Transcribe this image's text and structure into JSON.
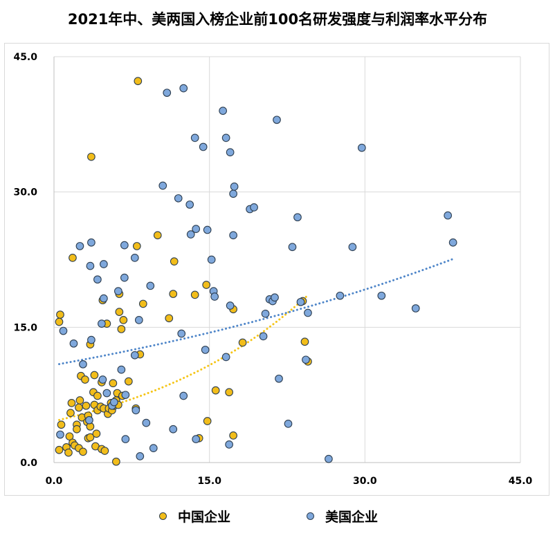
{
  "chart_data": {
    "type": "scatter",
    "title": "2021年中、美两国入榜企业前100名研发强度与利润率水平分布",
    "xlabel": "",
    "ylabel": "",
    "xlim": [
      0,
      45
    ],
    "ylim": [
      0,
      45
    ],
    "x_ticks": [
      "0.0",
      "15.0",
      "30.0",
      "45.0"
    ],
    "y_ticks": [
      "0.0",
      "15.0",
      "30.0",
      "45.0"
    ],
    "grid": "on",
    "legend_position": "bottom",
    "series": [
      {
        "name": "中国企业",
        "color": "#f2bd1a",
        "trendline": "exponential",
        "trend_range": [
          0.5,
          24.5
        ],
        "points": [
          [
            0.6,
            16.4
          ],
          [
            0.5,
            15.6
          ],
          [
            0.7,
            4.2
          ],
          [
            0.5,
            1.4
          ],
          [
            1.2,
            1.7
          ],
          [
            1.4,
            1.1
          ],
          [
            1.5,
            2.9
          ],
          [
            1.6,
            5.5
          ],
          [
            1.7,
            6.6
          ],
          [
            1.8,
            22.7
          ],
          [
            1.8,
            2.2
          ],
          [
            2.0,
            1.9
          ],
          [
            2.2,
            4.2
          ],
          [
            2.2,
            3.7
          ],
          [
            2.4,
            6.1
          ],
          [
            2.4,
            1.6
          ],
          [
            2.5,
            6.9
          ],
          [
            2.6,
            9.6
          ],
          [
            2.7,
            5.0
          ],
          [
            2.8,
            1.2
          ],
          [
            3.0,
            9.2
          ],
          [
            3.1,
            6.3
          ],
          [
            3.2,
            4.5
          ],
          [
            3.3,
            2.7
          ],
          [
            3.3,
            5.2
          ],
          [
            3.5,
            4.0
          ],
          [
            3.5,
            2.8
          ],
          [
            3.5,
            13.1
          ],
          [
            3.6,
            33.9
          ],
          [
            3.8,
            7.8
          ],
          [
            3.9,
            9.7
          ],
          [
            3.9,
            6.4
          ],
          [
            4.0,
            1.8
          ],
          [
            4.1,
            3.2
          ],
          [
            4.2,
            5.8
          ],
          [
            4.2,
            7.4
          ],
          [
            4.5,
            6.2
          ],
          [
            4.6,
            1.5
          ],
          [
            4.6,
            8.9
          ],
          [
            4.7,
            18.0
          ],
          [
            4.8,
            6.0
          ],
          [
            4.9,
            1.3
          ],
          [
            5.1,
            15.4
          ],
          [
            5.2,
            5.4
          ],
          [
            5.3,
            6.0
          ],
          [
            5.5,
            6.6
          ],
          [
            5.6,
            5.8
          ],
          [
            5.7,
            8.8
          ],
          [
            5.8,
            6.3
          ],
          [
            6.0,
            6.9
          ],
          [
            6.0,
            0.1
          ],
          [
            6.1,
            7.7
          ],
          [
            6.2,
            6.4
          ],
          [
            6.3,
            18.7
          ],
          [
            6.3,
            16.7
          ],
          [
            6.5,
            14.8
          ],
          [
            6.6,
            7.4
          ],
          [
            6.7,
            15.8
          ],
          [
            7.2,
            9.0
          ],
          [
            7.9,
            6.0
          ],
          [
            8.0,
            24.0
          ],
          [
            8.1,
            42.3
          ],
          [
            8.3,
            12.0
          ],
          [
            8.6,
            17.6
          ],
          [
            10.0,
            25.2
          ],
          [
            11.6,
            22.3
          ],
          [
            11.5,
            18.7
          ],
          [
            11.1,
            16.0
          ],
          [
            13.6,
            18.6
          ],
          [
            14.0,
            2.7
          ],
          [
            14.7,
            19.7
          ],
          [
            14.8,
            4.6
          ],
          [
            15.6,
            8.0
          ],
          [
            16.9,
            7.8
          ],
          [
            17.3,
            17.0
          ],
          [
            17.3,
            3.0
          ],
          [
            18.2,
            13.3
          ],
          [
            24.0,
            17.9
          ],
          [
            24.2,
            13.4
          ],
          [
            24.5,
            11.2
          ]
        ]
      },
      {
        "name": "美国企业",
        "color": "#7fa8dc",
        "trendline": "exponential",
        "trend_range": [
          0.5,
          38.5
        ],
        "points": [
          [
            0.6,
            3.1
          ],
          [
            0.9,
            14.6
          ],
          [
            1.9,
            13.2
          ],
          [
            2.5,
            24.0
          ],
          [
            2.8,
            10.9
          ],
          [
            3.4,
            4.7
          ],
          [
            3.5,
            21.8
          ],
          [
            3.6,
            13.6
          ],
          [
            3.6,
            24.4
          ],
          [
            4.2,
            20.3
          ],
          [
            4.6,
            15.4
          ],
          [
            4.7,
            9.2
          ],
          [
            4.8,
            22.0
          ],
          [
            4.8,
            18.2
          ],
          [
            5.1,
            7.7
          ],
          [
            5.6,
            6.3
          ],
          [
            5.8,
            6.7
          ],
          [
            6.2,
            19.0
          ],
          [
            6.5,
            10.3
          ],
          [
            6.8,
            24.1
          ],
          [
            6.8,
            20.5
          ],
          [
            6.9,
            2.6
          ],
          [
            6.9,
            7.5
          ],
          [
            7.8,
            11.9
          ],
          [
            7.8,
            22.7
          ],
          [
            7.9,
            5.8
          ],
          [
            8.2,
            15.8
          ],
          [
            8.3,
            0.7
          ],
          [
            8.9,
            4.4
          ],
          [
            9.3,
            19.6
          ],
          [
            9.6,
            1.6
          ],
          [
            10.5,
            30.7
          ],
          [
            10.9,
            41.0
          ],
          [
            11.5,
            3.7
          ],
          [
            12.0,
            29.3
          ],
          [
            12.3,
            14.3
          ],
          [
            12.5,
            7.4
          ],
          [
            12.5,
            41.5
          ],
          [
            13.1,
            28.6
          ],
          [
            13.2,
            25.3
          ],
          [
            13.6,
            36.0
          ],
          [
            13.7,
            25.9
          ],
          [
            13.7,
            2.6
          ],
          [
            14.4,
            35.0
          ],
          [
            14.6,
            12.5
          ],
          [
            14.8,
            25.8
          ],
          [
            15.2,
            22.5
          ],
          [
            15.4,
            19.0
          ],
          [
            15.5,
            18.4
          ],
          [
            16.3,
            39.0
          ],
          [
            16.6,
            11.7
          ],
          [
            16.6,
            36.0
          ],
          [
            16.9,
            2.0
          ],
          [
            17.0,
            34.4
          ],
          [
            17.0,
            17.4
          ],
          [
            17.3,
            25.2
          ],
          [
            17.3,
            29.8
          ],
          [
            17.4,
            30.6
          ],
          [
            18.9,
            28.1
          ],
          [
            19.3,
            28.3
          ],
          [
            20.2,
            14.0
          ],
          [
            20.4,
            16.5
          ],
          [
            20.8,
            18.1
          ],
          [
            21.1,
            17.9
          ],
          [
            21.3,
            18.3
          ],
          [
            21.5,
            38.0
          ],
          [
            21.7,
            9.3
          ],
          [
            22.6,
            4.3
          ],
          [
            23.0,
            23.9
          ],
          [
            23.5,
            27.2
          ],
          [
            23.8,
            17.8
          ],
          [
            24.5,
            16.6
          ],
          [
            24.3,
            11.4
          ],
          [
            26.5,
            0.4
          ],
          [
            27.6,
            18.5
          ],
          [
            28.8,
            23.9
          ],
          [
            29.7,
            34.9
          ],
          [
            31.6,
            18.5
          ],
          [
            34.9,
            17.1
          ],
          [
            38.0,
            27.4
          ],
          [
            38.5,
            24.4
          ]
        ]
      }
    ]
  },
  "legend": {
    "items": [
      {
        "label": "中国企业",
        "color": "#f2bd1a"
      },
      {
        "label": "美国企业",
        "color": "#7fa8dc"
      }
    ]
  }
}
